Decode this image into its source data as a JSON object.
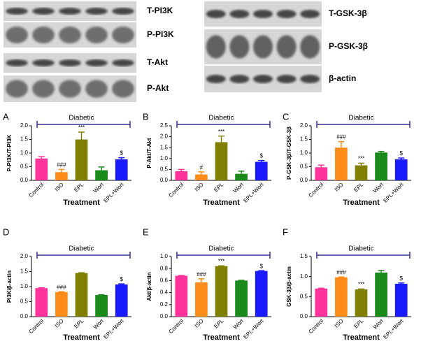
{
  "blots": {
    "left": [
      "T-PI3K",
      "P-PI3K",
      "T-Akt",
      "P-Akt"
    ],
    "right": [
      "T-GSK-3β",
      "P-GSK-3β",
      "β-actin"
    ]
  },
  "chart_data": [
    {
      "type": "bar",
      "panel": "A",
      "bracket_label": "Diabetic",
      "ylabel": "P-PI3K/T-PI3K",
      "xlabel": "Treatment",
      "categories": [
        "Control",
        "ISO",
        "EPL",
        "Wort",
        "EPL+Wort"
      ],
      "colors": [
        "#ff3399",
        "#ff8c1a",
        "#808000",
        "#1a8a1a",
        "#1a1aff"
      ],
      "values": [
        0.8,
        0.3,
        1.5,
        0.37,
        0.77
      ],
      "errors": [
        0.07,
        0.1,
        0.27,
        0.12,
        0.06
      ],
      "annotations": [
        null,
        "###",
        "***",
        null,
        "$"
      ],
      "ylim": [
        0,
        2
      ],
      "yticks": [
        {
          "value": 0,
          "label": "0.0"
        },
        0.5,
        {
          "value": 1,
          "label": "1.0"
        },
        1.5,
        {
          "value": 2,
          "label": "2.0"
        }
      ]
    },
    {
      "type": "bar",
      "panel": "B",
      "bracket_label": "Diabetic",
      "ylabel": "P-Akt/T-Akt",
      "xlabel": "Treatment",
      "categories": [
        "Control",
        "ISO",
        "EPL",
        "Wort",
        "EPL+Wort"
      ],
      "colors": [
        "#ff3399",
        "#ff8c1a",
        "#808000",
        "#1a8a1a",
        "#1a1aff"
      ],
      "values": [
        0.42,
        0.27,
        1.75,
        0.3,
        0.85
      ],
      "errors": [
        0.08,
        0.12,
        0.28,
        0.12,
        0.06
      ],
      "annotations": [
        null,
        "#",
        "***",
        null,
        "$"
      ],
      "ylim": [
        0,
        2.5
      ],
      "yticks": [
        {
          "value": 0,
          "label": "0.0"
        },
        0.5,
        {
          "value": 1,
          "label": "1.0"
        },
        1.5,
        {
          "value": 2,
          "label": "2.0"
        },
        2.5
      ]
    },
    {
      "type": "bar",
      "panel": "C",
      "bracket_label": "Diabetic",
      "ylabel": "P-GSK-3β/T-GSK-3β",
      "xlabel": "Treatment",
      "categories": [
        "Control",
        "ISO",
        "EPL",
        "Wort",
        "EPL+Wort"
      ],
      "colors": [
        "#ff3399",
        "#ff8c1a",
        "#808000",
        "#1a8a1a",
        "#1a1aff"
      ],
      "values": [
        0.48,
        1.2,
        0.55,
        1.02,
        0.77
      ],
      "errors": [
        0.08,
        0.22,
        0.08,
        0.04,
        0.05
      ],
      "annotations": [
        null,
        "###",
        "***",
        null,
        "$"
      ],
      "ylim": [
        0,
        2
      ],
      "yticks": [
        {
          "value": 0,
          "label": "0.0"
        },
        0.5,
        {
          "value": 1,
          "label": "1.0"
        },
        1.5,
        {
          "value": 2,
          "label": "2.0"
        }
      ]
    },
    {
      "type": "bar",
      "panel": "D",
      "bracket_label": "Diabetic",
      "ylabel": "PI3K/β-actin",
      "xlabel": "Treatment",
      "categories": [
        "Control",
        "ISO",
        "EPL",
        "Wort",
        "EPL+Wort"
      ],
      "colors": [
        "#ff3399",
        "#ff8c1a",
        "#808000",
        "#1a8a1a",
        "#1a1aff"
      ],
      "values": [
        0.95,
        0.82,
        1.45,
        0.72,
        1.07
      ],
      "errors": [
        0.01,
        0.01,
        0.01,
        0.01,
        0.02
      ],
      "annotations": [
        null,
        "###",
        null,
        null,
        "$"
      ],
      "ylim": [
        0,
        2
      ],
      "yticks": [
        {
          "value": 0,
          "label": "0.0"
        },
        0.5,
        {
          "value": 1,
          "label": "1.0"
        },
        1.5,
        {
          "value": 2,
          "label": "2.0"
        }
      ]
    },
    {
      "type": "bar",
      "panel": "E",
      "bracket_label": "Diabetic",
      "ylabel": "Akt/β-actin",
      "xlabel": "Treatment",
      "categories": [
        "Control",
        "ISO",
        "EPL",
        "Wort",
        "EPL+Wort"
      ],
      "colors": [
        "#ff3399",
        "#ff8c1a",
        "#808000",
        "#1a8a1a",
        "#1a1aff"
      ],
      "values": [
        0.68,
        0.57,
        0.84,
        0.6,
        0.76
      ],
      "errors": [
        0.005,
        0.06,
        0.005,
        0.005,
        0.005
      ],
      "annotations": [
        null,
        "###",
        "***",
        null,
        "$"
      ],
      "ylim": [
        0,
        1
      ],
      "yticks": [
        {
          "value": 0,
          "label": "0.0"
        },
        0.2,
        0.4,
        0.6,
        0.8,
        {
          "value": 1,
          "label": "1.0"
        }
      ]
    },
    {
      "type": "bar",
      "panel": "F",
      "bracket_label": "Diabetic",
      "ylabel": "GSK-3β/β-actin",
      "xlabel": "Treatment",
      "categories": [
        "Control",
        "ISO",
        "EPL",
        "Wort",
        "EPL+Wort"
      ],
      "colors": [
        "#ff3399",
        "#ff8c1a",
        "#808000",
        "#1a8a1a",
        "#1a1aff"
      ],
      "values": [
        0.7,
        0.98,
        0.68,
        1.1,
        0.82
      ],
      "errors": [
        0.01,
        0.01,
        0.01,
        0.05,
        0.02
      ],
      "annotations": [
        null,
        "###",
        "***",
        null,
        "$"
      ],
      "ylim": [
        0,
        1.5
      ],
      "yticks": [
        {
          "value": 0,
          "label": "0.0"
        },
        0.5,
        {
          "value": 1,
          "label": "1.0"
        },
        1.5
      ]
    }
  ]
}
